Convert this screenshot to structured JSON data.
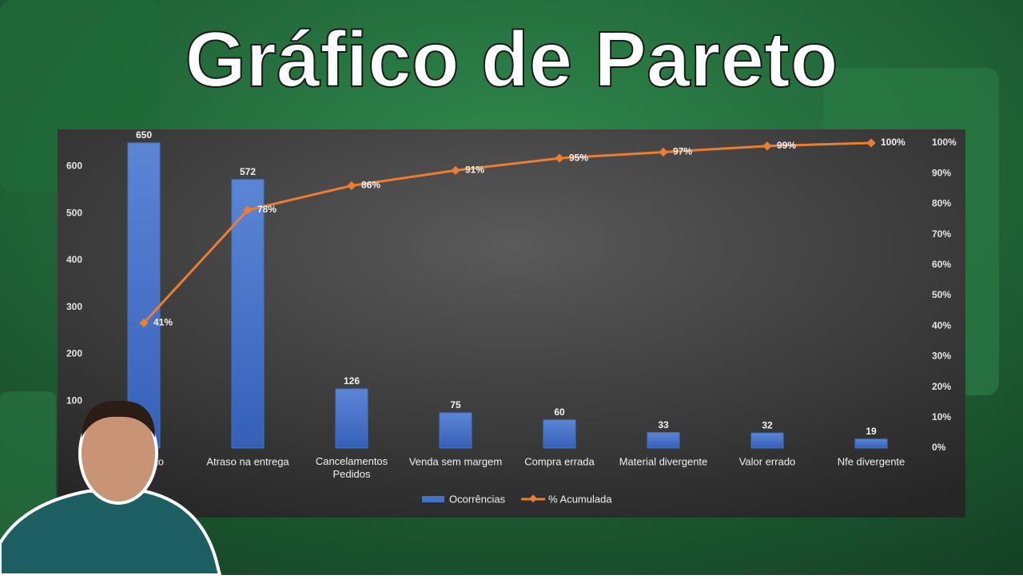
{
  "title": "Gráfico de Pareto",
  "chart_data": {
    "type": "pareto",
    "categories": [
      "n defeito",
      "Atraso na entrega",
      "Cancelamentos Pedidos",
      "Venda sem margem",
      "Compra errada",
      "Material divergente",
      "Valor errado",
      "Nfe divergente"
    ],
    "series": [
      {
        "name": "Ocorrências",
        "color": "#4472c4",
        "type": "bar",
        "values": [
          650,
          572,
          126,
          75,
          60,
          33,
          32,
          19
        ]
      },
      {
        "name": "% Acumulada",
        "color": "#ed7d31",
        "type": "line",
        "axis": "y2",
        "values": [
          41,
          78,
          86,
          91,
          95,
          97,
          99,
          100
        ],
        "value_labels": [
          "41%",
          "78%",
          "86%",
          "91%",
          "95%",
          "97%",
          "99%",
          "100%"
        ]
      }
    ],
    "ylim": [
      0,
      650
    ],
    "yticks": [
      100,
      200,
      300,
      400,
      500,
      600
    ],
    "y2lim": [
      0,
      100
    ],
    "y2ticks": [
      {
        "value": 0,
        "label": "0%"
      },
      {
        "value": 10,
        "label": "10%"
      },
      {
        "value": 20,
        "label": "20%"
      },
      {
        "value": 30,
        "label": "30%"
      },
      {
        "value": 40,
        "label": "40%"
      },
      {
        "value": 50,
        "label": "50%"
      },
      {
        "value": 60,
        "label": "60%"
      },
      {
        "value": 70,
        "label": "70%"
      },
      {
        "value": 80,
        "label": "80%"
      },
      {
        "value": 90,
        "label": "90%"
      },
      {
        "value": 100,
        "label": "100%"
      }
    ],
    "legend": "bottom"
  }
}
